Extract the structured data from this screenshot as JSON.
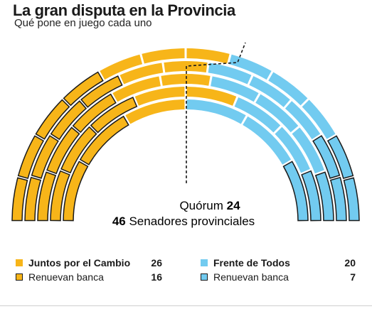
{
  "header": {
    "title": "La gran disputa en la Provincia",
    "subtitle": "Qué pone en juego cada uno"
  },
  "colors": {
    "juntos": "#f7b519",
    "frente": "#72cbf0",
    "outline": "#1b1b1b"
  },
  "chart_data": {
    "type": "parliament",
    "total_seats": 46,
    "quorum": 24,
    "quorum_label": "Quórum",
    "total_label": "Senadores provinciales",
    "series": [
      {
        "name": "Juntos por el Cambio",
        "seats": 26,
        "renew": 16,
        "color": "#f7b519"
      },
      {
        "name": "Frente de Todos",
        "seats": 20,
        "renew": 7,
        "color": "#72cbf0"
      }
    ]
  },
  "legend": {
    "left": {
      "party_label": "Juntos por el Cambio",
      "party_value": "26",
      "renew_label": "Renuevan banca",
      "renew_value": "16"
    },
    "right": {
      "party_label": "Frente de Todos",
      "party_value": "20",
      "renew_label": "Renuevan banca",
      "renew_value": "7"
    }
  }
}
